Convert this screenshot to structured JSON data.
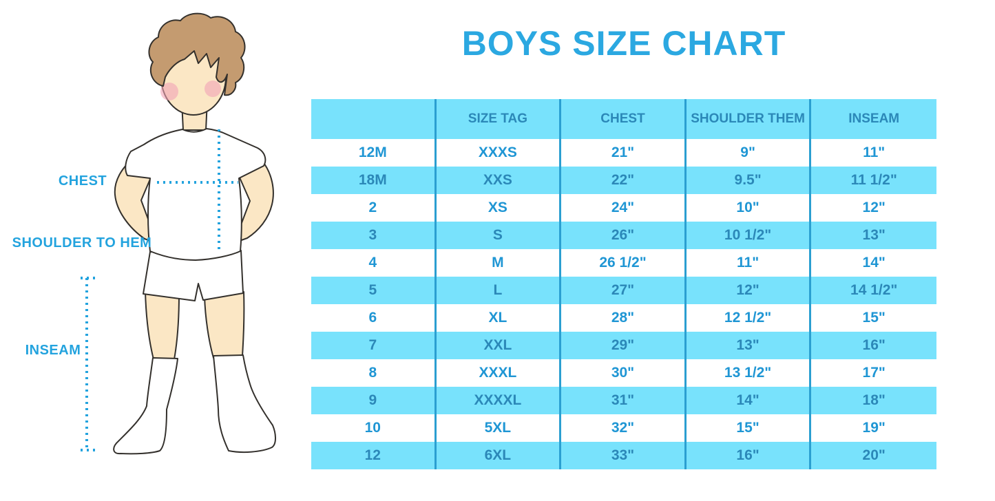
{
  "title": "BOYS SIZE CHART",
  "figure": {
    "chest_label": "CHEST",
    "shoulder_to_hem_label": "SHOULDER TO HEM",
    "inseam_label": "INSEAM"
  },
  "colors": {
    "title_blue": "#2BA8E1",
    "band_blue": "#78E2FC",
    "text_on_blue": "#2B88B8",
    "text_on_white": "#1F96D4",
    "divider": "#2B9FD1",
    "measure_blue": "#23A3DE",
    "skin": "#FBE7C5",
    "hair": "#C49B70",
    "cheek": "#F2A4B6",
    "outline": "#33302C"
  },
  "chart_data": {
    "type": "table",
    "title": "BOYS SIZE CHART",
    "columns": [
      "",
      "SIZE TAG",
      "CHEST",
      "SHOULDER THEM",
      "INSEAM"
    ],
    "rows": [
      [
        "12M",
        "XXXS",
        "21\"",
        "9\"",
        "11\""
      ],
      [
        "18M",
        "XXS",
        "22\"",
        "9.5\"",
        "11 1/2\""
      ],
      [
        "2",
        "XS",
        "24\"",
        "10\"",
        "12\""
      ],
      [
        "3",
        "S",
        "26\"",
        "10 1/2\"",
        "13\""
      ],
      [
        "4",
        "M",
        "26 1/2\"",
        "11\"",
        "14\""
      ],
      [
        "5",
        "L",
        "27\"",
        "12\"",
        "14 1/2\""
      ],
      [
        "6",
        "XL",
        "28\"",
        "12 1/2\"",
        "15\""
      ],
      [
        "7",
        "XXL",
        "29\"",
        "13\"",
        "16\""
      ],
      [
        "8",
        "XXXL",
        "30\"",
        "13 1/2\"",
        "17\""
      ],
      [
        "9",
        "XXXXL",
        "31\"",
        "14\"",
        "18\""
      ],
      [
        "10",
        "5XL",
        "32\"",
        "15\"",
        "19\""
      ],
      [
        "12",
        "6XL",
        "33\"",
        "16\"",
        "20\""
      ]
    ],
    "row_striping": [
      "white",
      "blue",
      "white",
      "blue",
      "white",
      "blue",
      "white",
      "blue",
      "white",
      "blue",
      "white",
      "blue"
    ],
    "header_background": "#78E2FC",
    "grid": "vertical-dividers-only",
    "legend_position": "none"
  }
}
